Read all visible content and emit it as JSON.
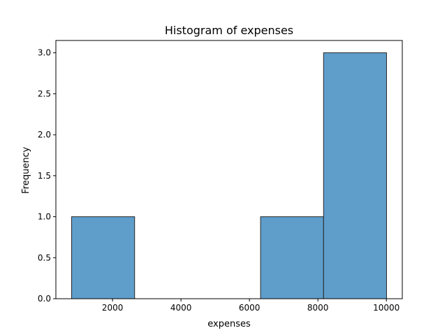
{
  "chart_data": {
    "type": "bar",
    "title": "Histogram of expenses",
    "xlabel": "expenses",
    "ylabel": "Frequency",
    "bins": [
      {
        "start": 805,
        "end": 2645,
        "count": 1
      },
      {
        "start": 2645,
        "end": 4485,
        "count": 0
      },
      {
        "start": 4485,
        "end": 6325,
        "count": 0
      },
      {
        "start": 6325,
        "end": 8165,
        "count": 1
      },
      {
        "start": 8165,
        "end": 10005,
        "count": 3
      }
    ],
    "xlim": [
      345,
      10465
    ],
    "ylim": [
      0,
      3.15
    ],
    "xticks": [
      2000,
      4000,
      6000,
      8000,
      10000
    ],
    "xtick_labels": [
      "2000",
      "4000",
      "6000",
      "8000",
      "10000"
    ],
    "yticks": [
      0,
      0.5,
      1.0,
      1.5,
      2.0,
      2.5,
      3.0
    ],
    "ytick_labels": [
      "0.0",
      "0.5",
      "1.0",
      "1.5",
      "2.0",
      "2.5",
      "3.0"
    ],
    "bar_color": "#5f9ecb",
    "bar_edge_color": "#262626",
    "grid": false,
    "legend": "none"
  }
}
